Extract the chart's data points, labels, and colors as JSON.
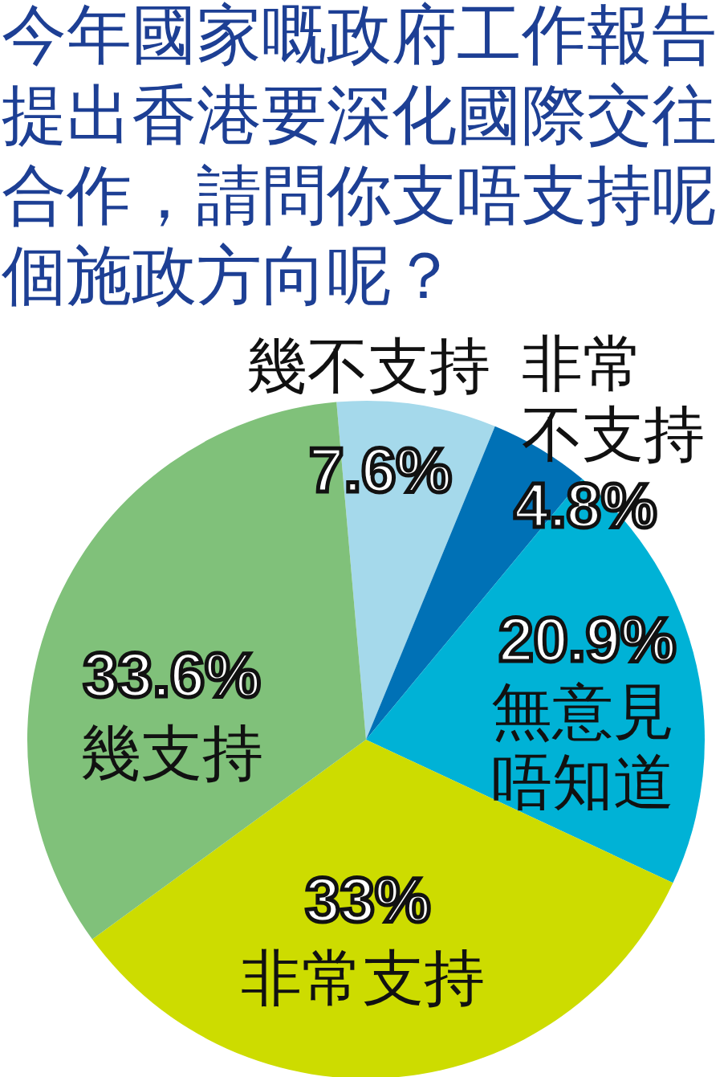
{
  "chart_data": {
    "type": "pie",
    "title": "今年國家嘅政府工作報告提出香港要深化國際交往合作，請問你支唔支持呢個施政方向呢？",
    "categories": [
      "幾不支持",
      "非常不支持",
      "無意見唔知道",
      "非常支持",
      "幾支持"
    ],
    "values": [
      7.6,
      4.8,
      20.9,
      33,
      33.6
    ],
    "colors": [
      "#a5d9eb",
      "#0071b6",
      "#00b2d6",
      "#cddc00",
      "#80c17a"
    ],
    "value_labels": [
      "7.6%",
      "4.8%",
      "20.9%",
      "33%",
      "33.6%"
    ]
  }
}
